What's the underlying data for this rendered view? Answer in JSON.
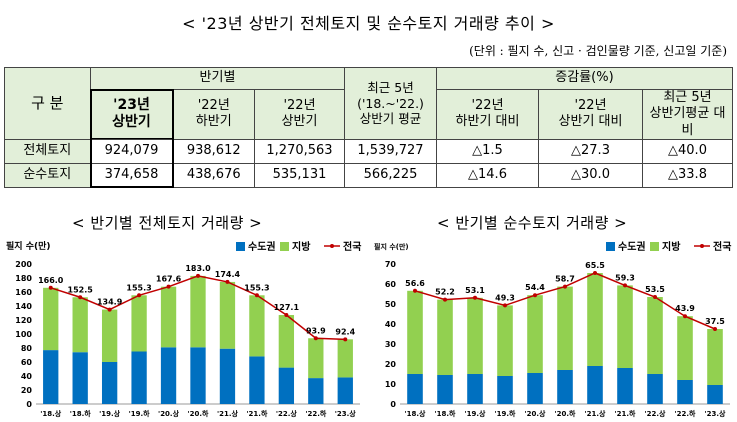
{
  "title": "< '23년 상반기 전체토지 및 순수토지 거래량 추이 >",
  "unit_note": "(단위 : 필지 수, 신고 · 검인물량 기준, 신고일 기준)",
  "table": {
    "corner": "구 분",
    "group_half": "반기별",
    "group_recent": "최근 5년\n('18.~'22.)\n상반기 평균",
    "group_rate": "증감률(%)",
    "cols_half": [
      "'23년\n상반기",
      "'22년\n하반기",
      "'22년\n상반기"
    ],
    "cols_rate": [
      "'22년\n하반기 대비",
      "'22년\n상반기 대비",
      "최근 5년\n상반기평균 대비"
    ],
    "rows": [
      {
        "label": "전체토지",
        "values": [
          "924,079",
          "938,612",
          "1,270,563",
          "1,539,727"
        ],
        "rates": [
          "△1.5",
          "△27.3",
          "△40.0"
        ]
      },
      {
        "label": "순수토지",
        "values": [
          "374,658",
          "438,676",
          "535,131",
          "566,225"
        ],
        "rates": [
          "△14.6",
          "△30.0",
          "△33.8"
        ]
      }
    ]
  },
  "colors": {
    "metro": "#0070c0",
    "local": "#92d050",
    "total": "#c00000"
  },
  "chart_data": [
    {
      "type": "bar",
      "subtitle": "< 반기별 전체토지 거래량 >",
      "ylabel": "필지 수(만)",
      "ylim": [
        0,
        200
      ],
      "yticks": [
        0,
        20,
        40,
        60,
        80,
        100,
        120,
        140,
        160,
        180,
        200
      ],
      "categories": [
        "'18.상",
        "'18.하",
        "'19.상",
        "'19.하",
        "'20.상",
        "'20.하",
        "'21.상",
        "'21.하",
        "'22.상",
        "'22.하",
        "'23.상"
      ],
      "series": [
        {
          "name": "수도권",
          "values": [
            77,
            74,
            60,
            75,
            81,
            81,
            79,
            68,
            52,
            37,
            38
          ]
        },
        {
          "name": "지방",
          "values": [
            89,
            78.5,
            74.9,
            80.3,
            86.6,
            102,
            95.4,
            87.3,
            75.1,
            56.9,
            54.4
          ]
        },
        {
          "name": "전국",
          "values": [
            166.0,
            152.5,
            134.9,
            155.3,
            167.6,
            183.0,
            174.4,
            155.3,
            127.1,
            93.9,
            92.4
          ]
        }
      ],
      "labels": [
        "166.0",
        "152.5",
        "134.9",
        "155.3",
        "167.6",
        "183.0",
        "174.4",
        "155.3",
        "127.1",
        "93.9",
        "92.4"
      ],
      "legend": "top-right"
    },
    {
      "type": "bar",
      "subtitle": "< 반기별 순수토지 거래량 >",
      "ylabel": "필지 수(만)",
      "ylim": [
        0,
        70
      ],
      "yticks": [
        0,
        10,
        20,
        30,
        40,
        50,
        60,
        70
      ],
      "categories": [
        "'18.상",
        "'18.하",
        "'19.상",
        "'19.하",
        "'20.상",
        "'20.하",
        "'21.상",
        "'21.하",
        "'22.상",
        "'22.하",
        "'23.상"
      ],
      "series": [
        {
          "name": "수도권",
          "values": [
            15,
            14.5,
            15,
            14,
            15.5,
            17,
            19,
            18,
            15,
            12,
            9.5
          ]
        },
        {
          "name": "지방",
          "values": [
            41.6,
            37.7,
            38.1,
            35.3,
            38.9,
            41.7,
            46.5,
            41.3,
            38.5,
            31.9,
            28
          ]
        },
        {
          "name": "전국",
          "values": [
            56.6,
            52.2,
            53.1,
            49.3,
            54.4,
            58.7,
            65.5,
            59.3,
            53.5,
            43.9,
            37.5
          ]
        }
      ],
      "labels": [
        "56.6",
        "52.2",
        "53.1",
        "49.3",
        "54.4",
        "58.7",
        "65.5",
        "59.3",
        "53.5",
        "43.9",
        "37.5"
      ],
      "legend": "top-right"
    }
  ]
}
